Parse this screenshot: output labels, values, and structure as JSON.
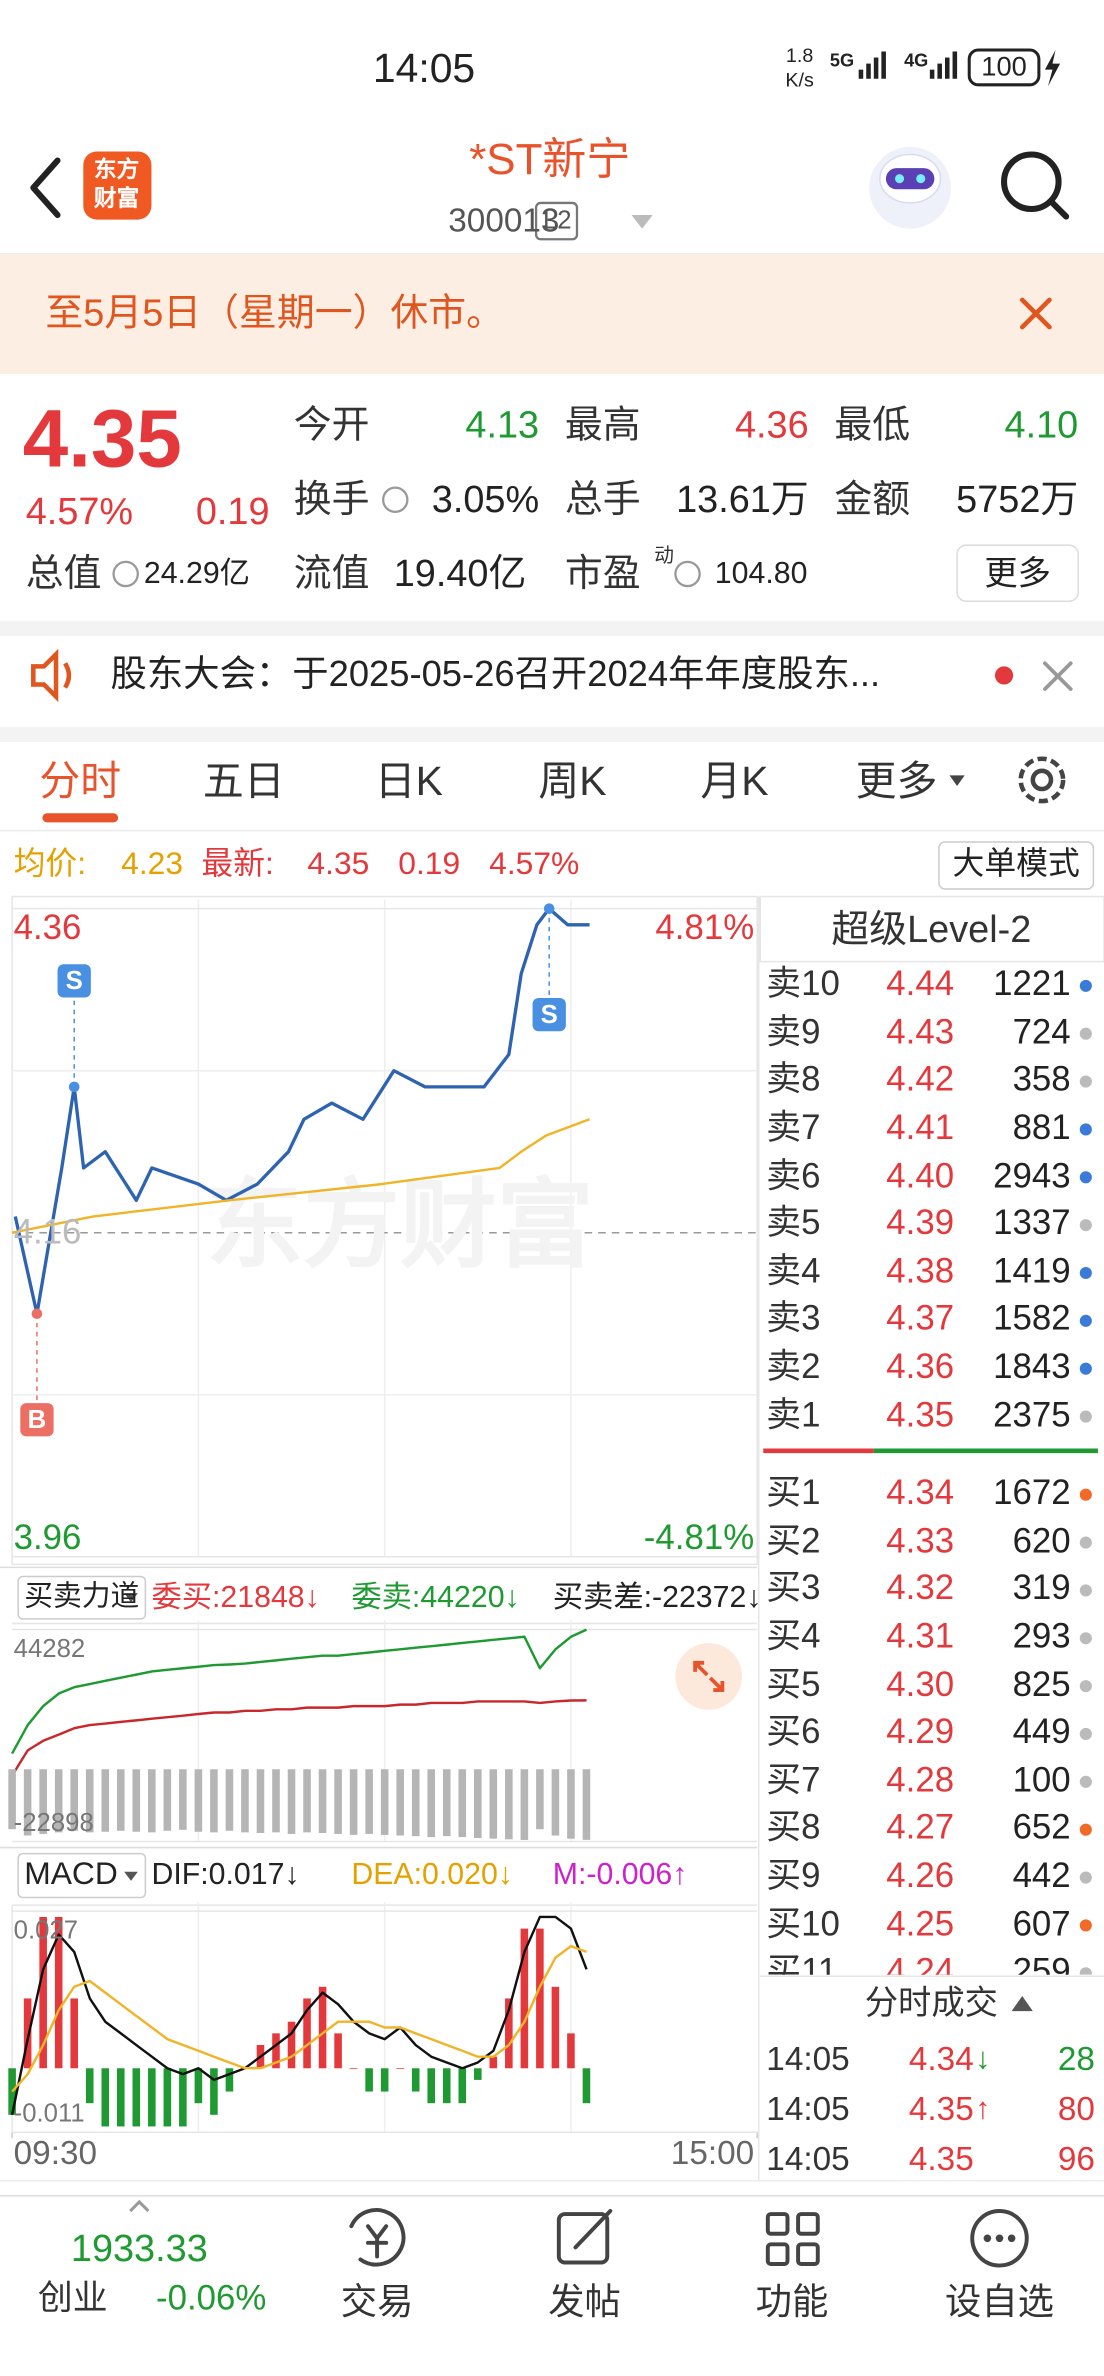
{
  "status_bar": {
    "time": "14:05",
    "net_speed": "1.8",
    "net_unit": "K/s",
    "signal_a": "5G",
    "signal_b": "4G",
    "battery": "100"
  },
  "header": {
    "logo": [
      "东方",
      "财富"
    ],
    "name": "*ST新宁",
    "code": "300013",
    "level": "L2"
  },
  "notice": {
    "text": "至5月5日（星期一）休市。"
  },
  "quote": {
    "price": "4.35",
    "change_pct": "4.57%",
    "change": "0.19",
    "fields": [
      {
        "label": "今开",
        "value": "4.13",
        "color": "#1f9a32"
      },
      {
        "label": "最高",
        "value": "4.36",
        "color": "#e4393c"
      },
      {
        "label": "最低",
        "value": "4.10",
        "color": "#1f9a32"
      },
      {
        "label": "换手",
        "value": "3.05%",
        "color": "#222222"
      },
      {
        "label": "总手",
        "value": "13.61万",
        "color": "#222222"
      },
      {
        "label": "金额",
        "value": "5752万",
        "color": "#222222"
      },
      {
        "label": "总值",
        "value": "24.29亿",
        "color": "#222222"
      },
      {
        "label": "流值",
        "value": "19.40亿",
        "color": "#222222"
      },
      {
        "label": "市盈",
        "sup": "动",
        "value": "104.80",
        "color": "#222222"
      }
    ],
    "more": "更多"
  },
  "announcement": {
    "text": "股东大会：于2025-05-26召开2024年年度股东..."
  },
  "tabs": {
    "items": [
      "分时",
      "五日",
      "日K",
      "周K",
      "月K",
      "更多"
    ],
    "active": 0
  },
  "chart_info": {
    "avg_label": "均价:",
    "avg": "4.23",
    "last_label": "最新:",
    "last": "4.35",
    "change": "0.19",
    "change_pct": "4.57%",
    "mode_button": "大单模式"
  },
  "chart_data": [
    {
      "type": "line",
      "xlim": [
        0,
        240
      ],
      "xticks": [
        {
          "value": 0,
          "label": "09:30"
        },
        {
          "value": 240,
          "label": "15:00"
        }
      ],
      "xgrid": [
        60,
        120,
        180
      ],
      "ylim": [
        3.96,
        4.36
      ],
      "yticks": [
        3.96,
        4.16,
        4.36
      ],
      "ygrid": [
        4.06,
        4.26
      ],
      "y2lim": [
        -4.81,
        4.81
      ],
      "y2ticks": [
        {
          "value": -4.81,
          "label": "-4.81%"
        },
        {
          "value": 4.81,
          "label": "4.81%"
        }
      ],
      "watermark": "东方财富",
      "series": [
        {
          "color": "#2d63b0",
          "x": [
            1,
            8,
            16,
            20,
            23,
            30,
            40,
            45,
            60,
            69,
            79,
            89,
            94,
            103,
            113,
            123,
            133,
            152,
            160,
            164,
            169,
            173,
            179,
            186
          ],
          "values": [
            4.17,
            4.11,
            4.2,
            4.25,
            4.2,
            4.21,
            4.18,
            4.2,
            4.19,
            4.18,
            4.19,
            4.21,
            4.23,
            4.24,
            4.23,
            4.26,
            4.25,
            4.25,
            4.27,
            4.32,
            4.35,
            4.36,
            4.35,
            4.35
          ]
        },
        {
          "color": "#f0b429",
          "x": [
            0,
            26,
            70,
            119,
            157,
            164,
            172,
            186
          ],
          "values": [
            4.16,
            4.17,
            4.18,
            4.19,
            4.2,
            4.21,
            4.22,
            4.23
          ]
        }
      ],
      "markers": [
        {
          "label": "B",
          "x": 8,
          "y": 4.11,
          "side": "below",
          "color": "#ec6f63"
        },
        {
          "label": "S",
          "x": 20,
          "y": 4.25,
          "side": "above",
          "color": "#4a90e2"
        },
        {
          "label": "S",
          "x": 173,
          "y": 4.36,
          "side": "below",
          "color": "#4a90e2"
        }
      ]
    },
    {
      "type": "line",
      "selector": "买卖力道",
      "readouts": [
        {
          "text": "委买:21848↓",
          "color": "#e4393c"
        },
        {
          "text": "委卖:44220↓",
          "color": "#1f9a32"
        },
        {
          "text": "买卖差:-22372↓",
          "color": "#222222"
        }
      ],
      "xlim": [
        0,
        240
      ],
      "ylim": [
        -22898,
        44282
      ],
      "yticks": [
        -22898,
        44282
      ],
      "x": [
        0,
        5,
        10,
        15,
        20,
        25,
        30,
        35,
        40,
        45,
        50,
        55,
        60,
        65,
        70,
        75,
        80,
        85,
        90,
        95,
        100,
        105,
        110,
        115,
        120,
        125,
        130,
        135,
        140,
        145,
        150,
        155,
        160,
        165,
        170,
        175,
        180,
        185
      ],
      "series": [
        {
          "type": "line",
          "color": "#1f9a32",
          "values": [
            5000,
            14000,
            20000,
            24000,
            26000,
            27000,
            28000,
            29000,
            30000,
            31000,
            31500,
            32000,
            32500,
            33000,
            33200,
            33500,
            34000,
            34500,
            35000,
            35500,
            36000,
            36000,
            36500,
            37000,
            37500,
            38000,
            38500,
            39000,
            39500,
            40000,
            40500,
            41000,
            41500,
            42000,
            32000,
            38000,
            42000,
            44220
          ]
        },
        {
          "type": "line",
          "color": "#c8282c",
          "values": [
            -2000,
            6000,
            9000,
            11000,
            13000,
            14000,
            14500,
            15000,
            15500,
            16000,
            16500,
            17000,
            17500,
            18000,
            18000,
            18500,
            18500,
            19000,
            19000,
            19500,
            19500,
            19500,
            20000,
            20000,
            20000,
            20500,
            20500,
            21000,
            21000,
            21000,
            21500,
            21500,
            21500,
            21500,
            21000,
            21500,
            21800,
            21848
          ]
        },
        {
          "type": "bar",
          "color": "#b5b5b5",
          "values": [
            -19000,
            -21000,
            -20500,
            -20000,
            -19500,
            -20000,
            -19800,
            -19500,
            -19800,
            -20000,
            -19500,
            -19200,
            -19800,
            -20000,
            -19500,
            -20000,
            -20200,
            -20000,
            -20500,
            -20000,
            -20200,
            -20500,
            -20800,
            -20500,
            -20800,
            -21000,
            -21200,
            -21500,
            -21200,
            -21500,
            -21800,
            -22000,
            -22200,
            -22400,
            -19000,
            -21000,
            -22000,
            -22372
          ]
        }
      ]
    },
    {
      "type": "line",
      "selector": "MACD",
      "readouts": [
        {
          "text": "DIF:0.017↓",
          "color": "#222222"
        },
        {
          "text": "DEA:0.020↓",
          "color": "#e5a100"
        },
        {
          "text": "M:-0.006↑",
          "color": "#cc22cc"
        }
      ],
      "xlim": [
        0,
        240
      ],
      "ylim": [
        -0.011,
        0.027
      ],
      "yticks": [
        -0.011,
        0.027
      ],
      "x": [
        0,
        5,
        10,
        15,
        20,
        25,
        30,
        35,
        40,
        45,
        50,
        55,
        60,
        65,
        70,
        75,
        80,
        85,
        90,
        95,
        100,
        105,
        110,
        115,
        120,
        125,
        130,
        135,
        140,
        145,
        150,
        155,
        160,
        165,
        170,
        175,
        180,
        185
      ],
      "up_color": "#e4393c",
      "down_color": "#1f9a32",
      "series": [
        {
          "type": "bar",
          "values": [
            -0.008,
            0.012,
            0.026,
            0.026,
            0.012,
            -0.006,
            -0.01,
            -0.01,
            -0.01,
            -0.01,
            -0.01,
            -0.01,
            -0.006,
            -0.008,
            -0.004,
            0,
            0.004,
            0.006,
            0.008,
            0.012,
            0.014,
            0.006,
            0,
            -0.004,
            -0.004,
            0,
            -0.004,
            -0.006,
            -0.006,
            -0.006,
            -0.002,
            0.002,
            0.012,
            0.024,
            0.024,
            0.014,
            0.006,
            -0.006
          ]
        },
        {
          "type": "line",
          "color": "#111111",
          "values": [
            -0.008,
            0.005,
            0.017,
            0.023,
            0.02,
            0.012,
            0.008,
            0.006,
            0.004,
            0.002,
            0.0,
            -0.001,
            0.0,
            -0.002,
            -0.001,
            0.0,
            0.002,
            0.004,
            0.006,
            0.01,
            0.013,
            0.011,
            0.008,
            0.006,
            0.005,
            0.007,
            0.004,
            0.002,
            0.001,
            0.0,
            0.001,
            0.003,
            0.01,
            0.02,
            0.026,
            0.026,
            0.024,
            0.017
          ]
        },
        {
          "type": "line",
          "color": "#f0b429",
          "values": [
            -0.004,
            -0.001,
            0.004,
            0.01,
            0.014,
            0.015,
            0.013,
            0.011,
            0.009,
            0.007,
            0.005,
            0.004,
            0.003,
            0.002,
            0.001,
            0.0,
            0.0,
            0.001,
            0.002,
            0.004,
            0.006,
            0.008,
            0.008,
            0.008,
            0.007,
            0.007,
            0.006,
            0.005,
            0.004,
            0.003,
            0.002,
            0.002,
            0.004,
            0.008,
            0.014,
            0.019,
            0.021,
            0.02
          ]
        }
      ]
    }
  ],
  "order_book": {
    "title": "超级Level-2",
    "asks": [
      {
        "label": "卖10",
        "price": "4.44",
        "volume": "1221",
        "dot": "#3b7bd8"
      },
      {
        "label": "卖9",
        "price": "4.43",
        "volume": "724",
        "dot": "#bbbbbb"
      },
      {
        "label": "卖8",
        "price": "4.42",
        "volume": "358",
        "dot": "#bbbbbb"
      },
      {
        "label": "卖7",
        "price": "4.41",
        "volume": "881",
        "dot": "#3b7bd8"
      },
      {
        "label": "卖6",
        "price": "4.40",
        "volume": "2943",
        "dot": "#3b7bd8"
      },
      {
        "label": "卖5",
        "price": "4.39",
        "volume": "1337",
        "dot": "#bbbbbb"
      },
      {
        "label": "卖4",
        "price": "4.38",
        "volume": "1419",
        "dot": "#3b7bd8"
      },
      {
        "label": "卖3",
        "price": "4.37",
        "volume": "1582",
        "dot": "#3b7bd8"
      },
      {
        "label": "卖2",
        "price": "4.36",
        "volume": "1843",
        "dot": "#3b7bd8"
      },
      {
        "label": "卖1",
        "price": "4.35",
        "volume": "2375",
        "dot": "#bbbbbb"
      }
    ],
    "bids": [
      {
        "label": "买1",
        "price": "4.34",
        "volume": "1672",
        "dot": "#f06a28"
      },
      {
        "label": "买2",
        "price": "4.33",
        "volume": "620",
        "dot": "#bbbbbb"
      },
      {
        "label": "买3",
        "price": "4.32",
        "volume": "319",
        "dot": "#bbbbbb"
      },
      {
        "label": "买4",
        "price": "4.31",
        "volume": "293",
        "dot": "#bbbbbb"
      },
      {
        "label": "买5",
        "price": "4.30",
        "volume": "825",
        "dot": "#bbbbbb"
      },
      {
        "label": "买6",
        "price": "4.29",
        "volume": "449",
        "dot": "#bbbbbb"
      },
      {
        "label": "买7",
        "price": "4.28",
        "volume": "100",
        "dot": "#bbbbbb"
      },
      {
        "label": "买8",
        "price": "4.27",
        "volume": "652",
        "dot": "#f06a28"
      },
      {
        "label": "买9",
        "price": "4.26",
        "volume": "442",
        "dot": "#bbbbbb"
      },
      {
        "label": "买10",
        "price": "4.25",
        "volume": "607",
        "dot": "#f06a28"
      },
      {
        "label": "买11",
        "price": "4.24",
        "volume": "259",
        "dot": "#bbbbbb"
      }
    ]
  },
  "trades": {
    "title": "分时成交",
    "rows": [
      {
        "time": "14:05",
        "price": "4.34",
        "arrow": "↓",
        "volume": "28",
        "color": "#1f9a32"
      },
      {
        "time": "14:05",
        "price": "4.35",
        "arrow": "↑",
        "volume": "80",
        "color": "#e4393c"
      },
      {
        "time": "14:05",
        "price": "4.35",
        "volume": "96",
        "color": "#e4393c"
      }
    ]
  },
  "bottom_bar": {
    "index_value": "1933.33",
    "index_name": "创业",
    "index_change": "-0.06%",
    "nav": [
      "交易",
      "发帖",
      "功能",
      "设自选"
    ]
  }
}
